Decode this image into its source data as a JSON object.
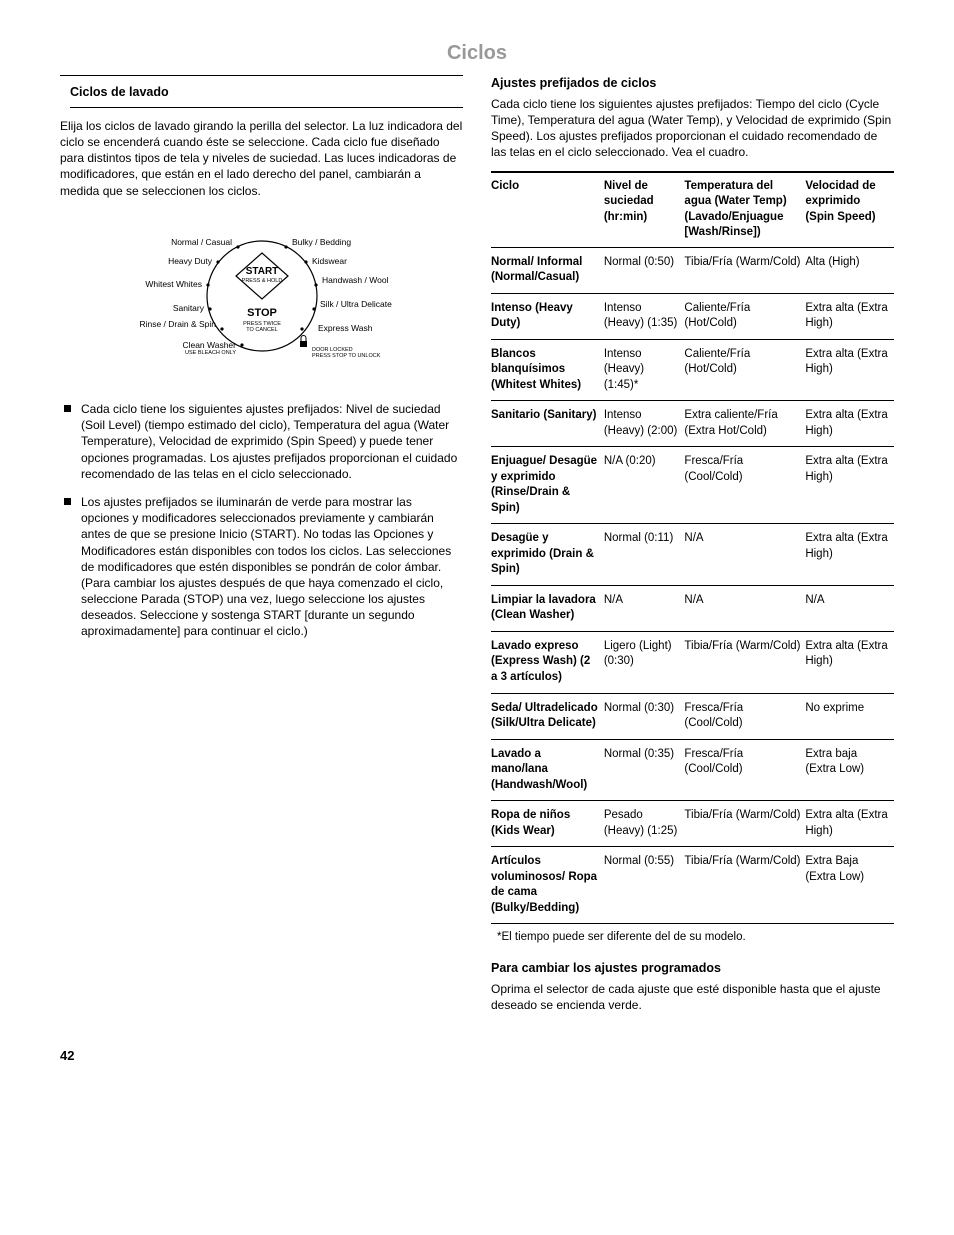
{
  "title": "Ciclos",
  "left": {
    "heading": "Ciclos de lavado",
    "intro": "Elija los ciclos de lavado girando la perilla del selector. La luz indicadora del ciclo se encenderá cuando éste se seleccione. Cada ciclo fue diseñado para distintos tipos de tela y niveles de suciedad. Las luces indicadoras de modificadores, que están en el lado derecho del panel, cambiarán a medida que se seleccionen los ciclos.",
    "dial": {
      "left_labels": [
        "Normal / Casual",
        "Heavy Duty",
        "Whitest Whites",
        "Sanitary",
        "Rinse / Drain & Spin",
        "Clean Washer"
      ],
      "right_labels": [
        "Bulky / Bedding",
        "Kidswear",
        "Handwash / Wool",
        "Silk / Ultra Delicate",
        "Express Wash"
      ],
      "center_top": "START",
      "center_top_sub": "PRESS & HOLD",
      "center_bottom": "STOP",
      "center_bottom_sub1": "PRESS TWICE",
      "center_bottom_sub2": "TO CANCEL",
      "lock": "DOOR LOCKED",
      "lock_sub": "PRESS STOP TO UNLOCK",
      "bleach": "USE BLEACH ONLY"
    },
    "bullets": [
      "Cada ciclo tiene los siguientes ajustes prefijados: Nivel de suciedad (Soil Level) (tiempo estimado del ciclo), Temperatura del agua (Water Temperature), Velocidad de exprimido (Spin Speed) y puede tener opciones programadas. Los ajustes prefijados proporcionan el cuidado recomendado de las telas en el ciclo seleccionado.",
      "Los ajustes prefijados se iluminarán de verde para mostrar las opciones y modificadores seleccionados previamente y cambiarán antes de que se presione Inicio (START). No todas las Opciones y Modificadores están disponibles con todos los ciclos. Las selecciones de modificadores que estén disponibles se pondrán de color ámbar. (Para cambiar los ajustes después de que haya comenzado el ciclo, seleccione Parada (STOP) una vez, luego seleccione los ajustes deseados. Seleccione y sostenga START [durante un segundo aproximadamente] para continuar el ciclo.)"
    ]
  },
  "right": {
    "heading": "Ajustes prefijados de ciclos",
    "intro": "Cada ciclo tiene los siguientes ajustes prefijados: Tiempo del ciclo (Cycle Time), Temperatura del agua (Water Temp), y Velocidad de exprimido (Spin Speed). Los ajustes prefijados proporcionan el cuidado recomendado de las telas en el ciclo seleccionado. Vea el cuadro.",
    "columns": [
      "Ciclo",
      "Nivel de suciedad (hr:min)",
      "Temperatura del agua (Water Temp) (Lavado/Enjuague [Wash/Rinse])",
      "Velocidad de exprimido (Spin Speed)"
    ],
    "rows": [
      [
        "Normal/ Informal (Normal/Casual)",
        "Normal (0:50)",
        "Tibia/Fría (Warm/Cold)",
        "Alta (High)"
      ],
      [
        "Intenso (Heavy Duty)",
        "Intenso (Heavy) (1:35)",
        "Caliente/Fría (Hot/Cold)",
        "Extra alta (Extra High)"
      ],
      [
        "Blancos blanquísimos (Whitest Whites)",
        "Intenso (Heavy) (1:45)*",
        "Caliente/Fría (Hot/Cold)",
        "Extra alta (Extra High)"
      ],
      [
        "Sanitario (Sanitary)",
        "Intenso (Heavy) (2:00)",
        "Extra caliente/Fría (Extra Hot/Cold)",
        "Extra alta (Extra High)"
      ],
      [
        "Enjuague/ Desagüe y exprimido (Rinse/Drain & Spin)",
        "N/A (0:20)",
        "Fresca/Fría (Cool/Cold)",
        "Extra alta (Extra High)"
      ],
      [
        "Desagüe y exprimido (Drain & Spin)",
        "Normal (0:11)",
        "N/A",
        "Extra alta (Extra High)"
      ],
      [
        "Limpiar la lavadora (Clean Washer)",
        "N/A",
        "N/A",
        "N/A"
      ],
      [
        "Lavado expreso (Express Wash) (2 a 3 artículos)",
        "Ligero (Light) (0:30)",
        "Tibia/Fría (Warm/Cold)",
        "Extra alta (Extra High)"
      ],
      [
        "Seda/ Ultradelicado (Silk/Ultra Delicate)",
        "Normal (0:30)",
        "Fresca/Fría (Cool/Cold)",
        "No exprime"
      ],
      [
        "Lavado a mano/lana (Handwash/Wool)",
        "Normal (0:35)",
        "Fresca/Fría (Cool/Cold)",
        "Extra baja (Extra Low)"
      ],
      [
        "Ropa de niños (Kids Wear)",
        "Pesado (Heavy) (1:25)",
        "Tibia/Fría (Warm/Cold)",
        "Extra alta (Extra High)"
      ],
      [
        "Artículos voluminosos/ Ropa de cama (Bulky/Bedding)",
        "Normal (0:55)",
        "Tibia/Fría (Warm/Cold)",
        "Extra Baja (Extra Low)"
      ]
    ],
    "footnote": "*El tiempo puede ser diferente del de su modelo.",
    "change_heading": "Para cambiar los ajustes programados",
    "change_text": "Oprima el selector de cada ajuste que esté disponible hasta que el ajuste deseado se encienda verde."
  },
  "page_number": "42"
}
